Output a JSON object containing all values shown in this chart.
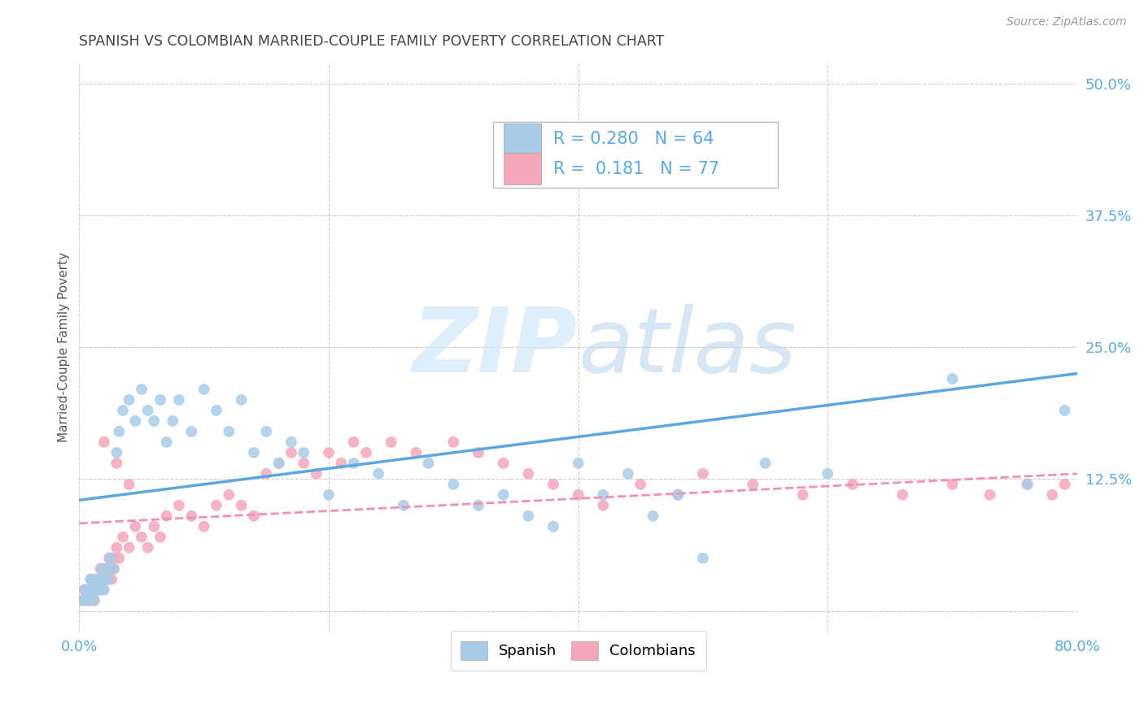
{
  "title": "SPANISH VS COLOMBIAN MARRIED-COUPLE FAMILY POVERTY CORRELATION CHART",
  "source": "Source: ZipAtlas.com",
  "ylabel": "Married-Couple Family Poverty",
  "watermark": "ZIPatlas",
  "xlim": [
    0.0,
    0.8
  ],
  "ylim": [
    -0.02,
    0.52
  ],
  "xticks": [
    0.0,
    0.2,
    0.4,
    0.6,
    0.8
  ],
  "ytick_positions": [
    0.0,
    0.125,
    0.25,
    0.375,
    0.5
  ],
  "spanish_R": 0.28,
  "spanish_N": 64,
  "colombian_R": 0.181,
  "colombian_N": 77,
  "spanish_color": "#a8cce8",
  "colombian_color": "#f4a7b9",
  "spanish_line_color": "#5ba8e0",
  "colombian_line_color": "#f48fb1",
  "background_color": "#ffffff",
  "grid_color": "#cccccc",
  "title_color": "#444444",
  "axis_label_color": "#555555",
  "tick_label_color": "#5ba8e0",
  "sp_x": [
    0.003,
    0.005,
    0.006,
    0.007,
    0.008,
    0.009,
    0.01,
    0.012,
    0.013,
    0.014,
    0.015,
    0.016,
    0.017,
    0.018,
    0.019,
    0.02,
    0.021,
    0.022,
    0.023,
    0.025,
    0.027,
    0.03,
    0.032,
    0.035,
    0.04,
    0.045,
    0.05,
    0.055,
    0.06,
    0.065,
    0.07,
    0.075,
    0.08,
    0.09,
    0.1,
    0.11,
    0.12,
    0.13,
    0.14,
    0.15,
    0.16,
    0.17,
    0.18,
    0.2,
    0.22,
    0.24,
    0.26,
    0.28,
    0.3,
    0.32,
    0.34,
    0.36,
    0.38,
    0.4,
    0.42,
    0.44,
    0.46,
    0.48,
    0.5,
    0.55,
    0.6,
    0.7,
    0.76,
    0.79
  ],
  "sp_y": [
    0.01,
    0.02,
    0.01,
    0.02,
    0.01,
    0.03,
    0.02,
    0.01,
    0.02,
    0.03,
    0.02,
    0.03,
    0.02,
    0.04,
    0.03,
    0.02,
    0.03,
    0.04,
    0.03,
    0.05,
    0.04,
    0.15,
    0.17,
    0.19,
    0.2,
    0.18,
    0.21,
    0.19,
    0.18,
    0.2,
    0.16,
    0.18,
    0.2,
    0.17,
    0.21,
    0.19,
    0.17,
    0.2,
    0.15,
    0.17,
    0.14,
    0.16,
    0.15,
    0.11,
    0.14,
    0.13,
    0.1,
    0.14,
    0.12,
    0.1,
    0.11,
    0.09,
    0.08,
    0.14,
    0.11,
    0.13,
    0.09,
    0.11,
    0.05,
    0.14,
    0.13,
    0.22,
    0.12,
    0.19
  ],
  "co_x": [
    0.002,
    0.003,
    0.004,
    0.005,
    0.006,
    0.007,
    0.008,
    0.009,
    0.01,
    0.011,
    0.012,
    0.013,
    0.014,
    0.015,
    0.016,
    0.017,
    0.018,
    0.019,
    0.02,
    0.021,
    0.022,
    0.023,
    0.024,
    0.025,
    0.026,
    0.027,
    0.028,
    0.03,
    0.032,
    0.035,
    0.04,
    0.045,
    0.05,
    0.055,
    0.06,
    0.065,
    0.07,
    0.08,
    0.09,
    0.1,
    0.11,
    0.12,
    0.13,
    0.14,
    0.15,
    0.16,
    0.17,
    0.18,
    0.19,
    0.2,
    0.21,
    0.22,
    0.23,
    0.25,
    0.27,
    0.3,
    0.32,
    0.34,
    0.36,
    0.38,
    0.4,
    0.42,
    0.45,
    0.48,
    0.5,
    0.54,
    0.58,
    0.62,
    0.66,
    0.7,
    0.73,
    0.76,
    0.78,
    0.79,
    0.02,
    0.03,
    0.04
  ],
  "co_y": [
    0.01,
    0.01,
    0.02,
    0.01,
    0.02,
    0.01,
    0.02,
    0.01,
    0.03,
    0.02,
    0.01,
    0.02,
    0.03,
    0.02,
    0.03,
    0.04,
    0.03,
    0.02,
    0.04,
    0.03,
    0.04,
    0.03,
    0.05,
    0.04,
    0.03,
    0.05,
    0.04,
    0.06,
    0.05,
    0.07,
    0.06,
    0.08,
    0.07,
    0.06,
    0.08,
    0.07,
    0.09,
    0.1,
    0.09,
    0.08,
    0.1,
    0.11,
    0.1,
    0.09,
    0.13,
    0.14,
    0.15,
    0.14,
    0.13,
    0.15,
    0.14,
    0.16,
    0.15,
    0.16,
    0.15,
    0.16,
    0.15,
    0.14,
    0.13,
    0.12,
    0.11,
    0.1,
    0.12,
    0.11,
    0.13,
    0.12,
    0.11,
    0.12,
    0.11,
    0.12,
    0.11,
    0.12,
    0.11,
    0.12,
    0.16,
    0.14,
    0.12
  ]
}
